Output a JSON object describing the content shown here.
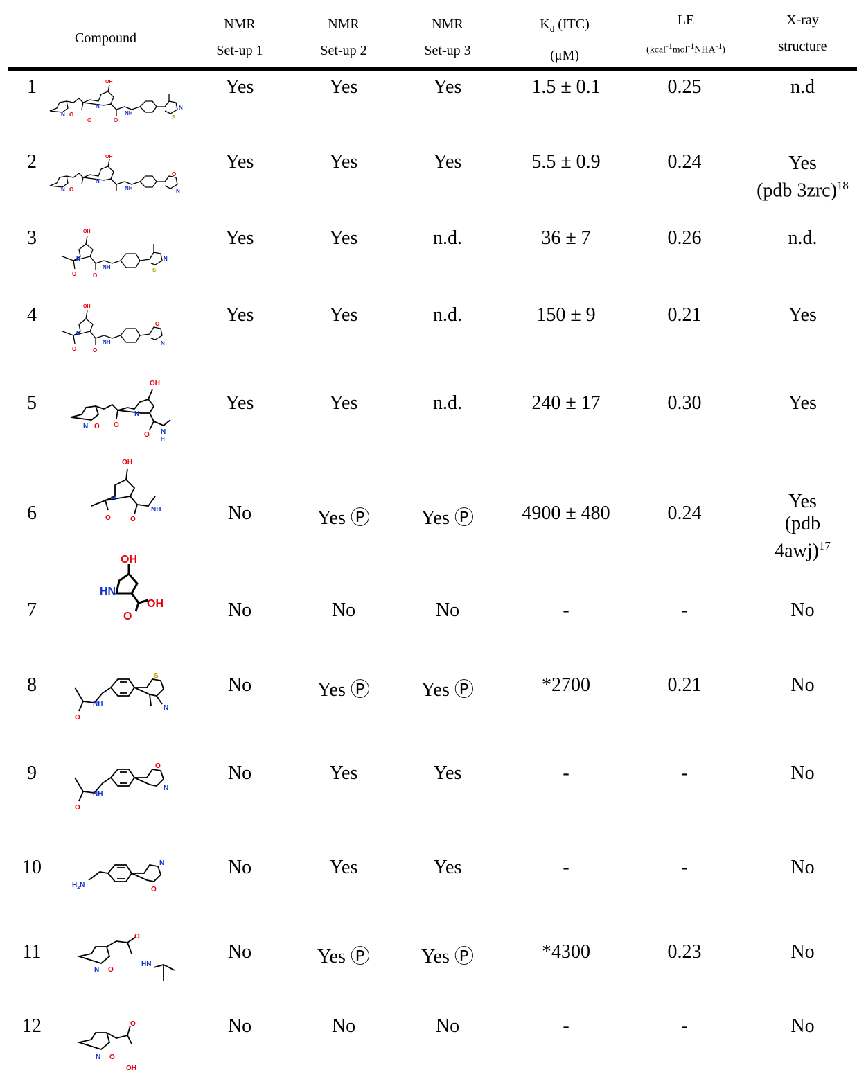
{
  "header": {
    "compound": "Compound",
    "nmr1_a": "NMR",
    "nmr1_b": "Set-up 1",
    "nmr2_a": "NMR",
    "nmr2_b": "Set-up 2",
    "nmr3_a": "NMR",
    "nmr3_b": "Set-up 3",
    "kd_a": "Kd (ITC)",
    "kd_b": "(μM)",
    "le_a": "LE",
    "le_b": "(kcal-1mol-1NHA-1)",
    "xray_a": "X-ray",
    "xray_b": "structure"
  },
  "rows": [
    {
      "num": "1",
      "nmr1": "Yes",
      "nmr2": "Yes",
      "nmr3": "Yes",
      "kd": "1.5 ± 0.1",
      "le": "0.25",
      "xray": "n.d"
    },
    {
      "num": "2",
      "nmr1": "Yes",
      "nmr2": "Yes",
      "nmr3": "Yes",
      "kd": "5.5 ± 0.9",
      "le": "0.24",
      "xray_l1": "Yes",
      "xray_l2": "(pdb 3zrc)",
      "xray_ref": "18"
    },
    {
      "num": "3",
      "nmr1": "Yes",
      "nmr2": "Yes",
      "nmr3": "n.d.",
      "kd": "36 ± 7",
      "le": "0.26",
      "xray": "n.d."
    },
    {
      "num": "4",
      "nmr1": "Yes",
      "nmr2": "Yes",
      "nmr3": "n.d.",
      "kd": "150 ± 9",
      "le": "0.21",
      "xray": "Yes"
    },
    {
      "num": "5",
      "nmr1": "Yes",
      "nmr2": "Yes",
      "nmr3": "n.d.",
      "kd": "240 ± 17",
      "le": "0.30",
      "xray": "Yes"
    },
    {
      "num": "6",
      "nmr1": "No",
      "nmr2": "Yes Ⓟ",
      "nmr3": "Yes Ⓟ",
      "kd": "4900 ± 480",
      "le": "0.24",
      "xray_l1": "Yes",
      "xray_l2": "(pdb",
      "xray_l3": "4awj)",
      "xray_ref": "17"
    },
    {
      "num": "7",
      "nmr1": "No",
      "nmr2": "No",
      "nmr3": "No",
      "kd": "-",
      "le": "-",
      "xray": "No"
    },
    {
      "num": "8",
      "nmr1": "No",
      "nmr2": "Yes Ⓟ",
      "nmr3": "Yes Ⓟ",
      "kd": "*2700",
      "le": "0.21",
      "xray": "No"
    },
    {
      "num": "9",
      "nmr1": "No",
      "nmr2": "Yes",
      "nmr3": "Yes",
      "kd": "-",
      "le": "-",
      "xray": "No"
    },
    {
      "num": "10",
      "nmr1": "No",
      "nmr2": "Yes",
      "nmr3": "Yes",
      "kd": "-",
      "le": "-",
      "xray": "No"
    },
    {
      "num": "11",
      "nmr1": "No",
      "nmr2": "Yes Ⓟ",
      "nmr3": "Yes Ⓟ",
      "kd": "*4300",
      "le": "0.23",
      "xray": "No"
    },
    {
      "num": "12",
      "nmr1": "No",
      "nmr2": "No",
      "nmr3": "No",
      "kd": "-",
      "le": "-",
      "xray": "No"
    }
  ],
  "atoms": {
    "oh": "OH",
    "n": "N",
    "o": "O",
    "s": "S",
    "nh": "NH",
    "hn": "HN",
    "h": "H",
    "h2n": "H2N"
  },
  "colors": {
    "red": "#e8000b",
    "blue": "#1030d0"
  }
}
